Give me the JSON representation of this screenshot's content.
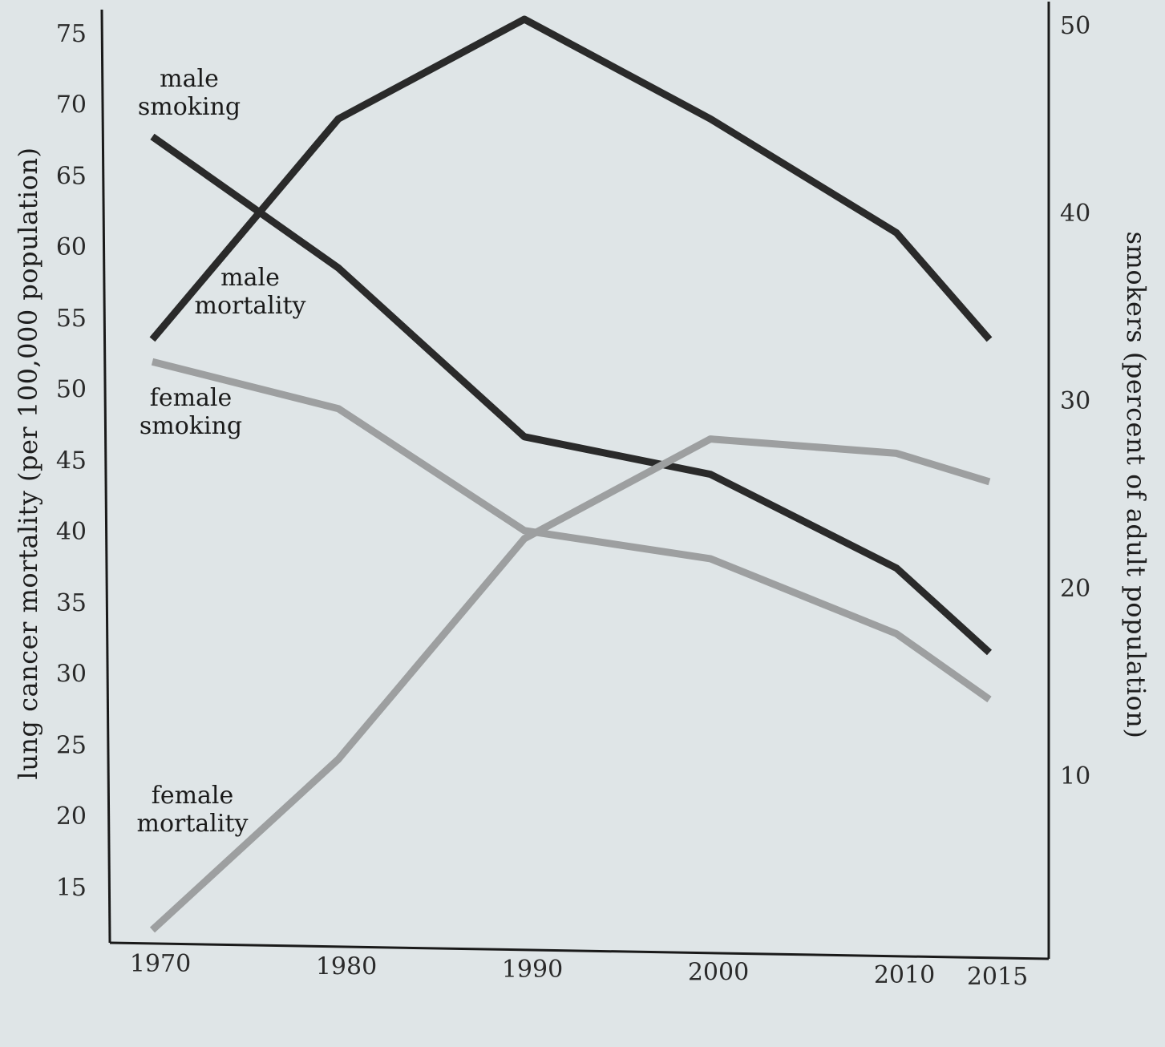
{
  "chart_data": {
    "type": "line",
    "title": "",
    "x": [
      1970,
      1980,
      1990,
      2000,
      2010,
      2015
    ],
    "xlabel": "",
    "ylabel_left": "lung cancer mortality (per 100,000 population)",
    "ylabel_right": "smokers (percent of adult population)",
    "yticks_left": [
      15,
      20,
      25,
      30,
      35,
      40,
      45,
      50,
      55,
      60,
      65,
      70,
      75
    ],
    "yticks_right": [
      10,
      20,
      30,
      40,
      50
    ],
    "ylim_left": [
      12,
      75
    ],
    "ylim_right": [
      0,
      50
    ],
    "grid": false,
    "series": [
      {
        "name": "male smoking",
        "label_lines": [
          "male",
          "smoking"
        ],
        "axis": "right",
        "color": "#2a2a2a",
        "values": [
          44,
          37,
          28,
          26,
          21,
          16.5
        ]
      },
      {
        "name": "male mortality",
        "label_lines": [
          "male",
          "mortality"
        ],
        "axis": "left",
        "color": "#2a2a2a",
        "values": [
          53.5,
          69,
          76,
          69,
          61,
          53.5
        ]
      },
      {
        "name": "female smoking",
        "label_lines": [
          "female",
          "smoking"
        ],
        "axis": "right",
        "color": "#9d9fa0",
        "values": [
          32,
          29.5,
          23,
          21.5,
          17.5,
          14
        ]
      },
      {
        "name": "female mortality",
        "label_lines": [
          "female",
          "mortality"
        ],
        "axis": "left",
        "color": "#9d9fa0",
        "values": [
          12,
          24,
          39.5,
          46.5,
          45.5,
          43.5
        ]
      }
    ]
  }
}
